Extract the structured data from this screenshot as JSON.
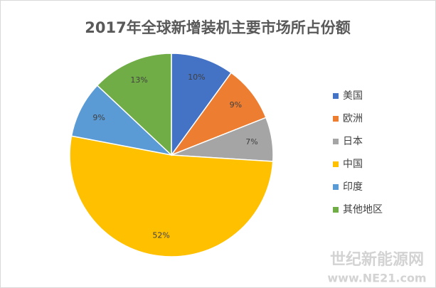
{
  "chart_data": {
    "type": "pie",
    "title": "2017年全球新增装机主要市场所占份额",
    "categories": [
      "美国",
      "欧洲",
      "日本",
      "中国",
      "印度",
      "其他地区"
    ],
    "values": [
      10,
      9,
      7,
      52,
      9,
      13
    ],
    "value_labels": [
      "10%",
      "9%",
      "7%",
      "52%",
      "9%",
      "13%"
    ],
    "colors": [
      "#4472c4",
      "#ed7d31",
      "#a5a5a5",
      "#ffc000",
      "#5b9bd5",
      "#70ad47"
    ],
    "legend": "right"
  },
  "watermark": [
    "世纪新能源网",
    "www.NE21.com"
  ]
}
